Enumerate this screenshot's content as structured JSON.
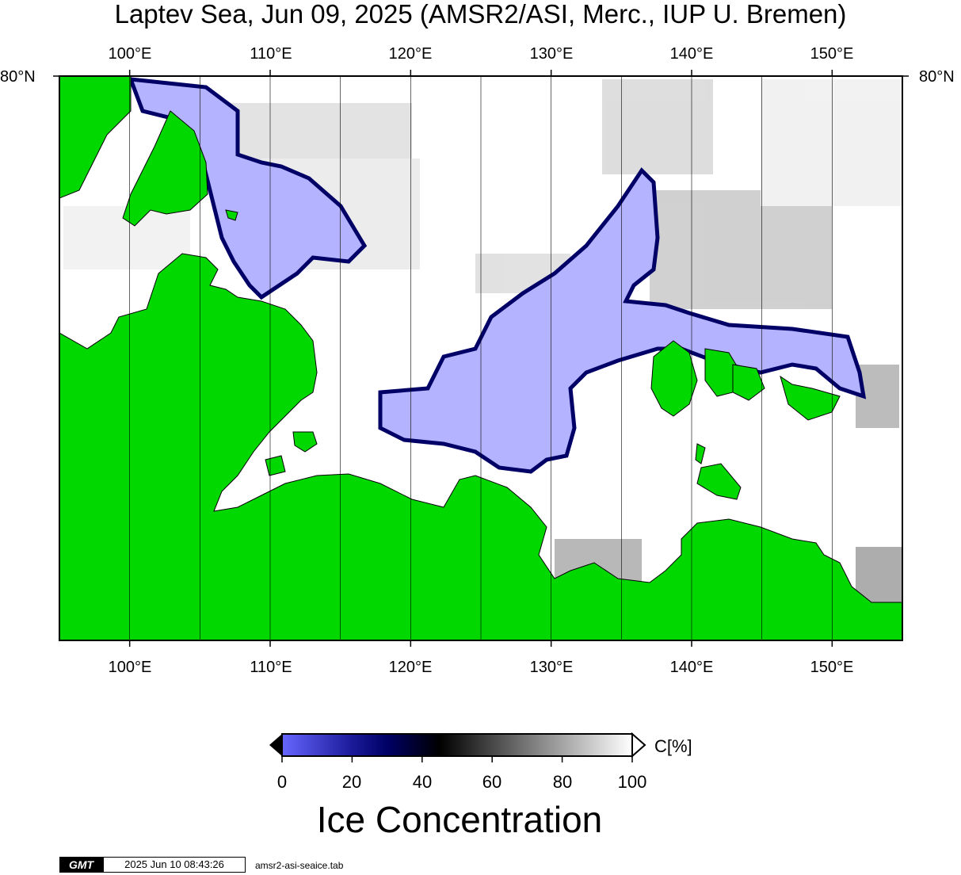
{
  "title": "Laptev Sea, Jun 09, 2025 (AMSR2/ASI, Merc., IUP U. Bremen)",
  "map": {
    "lon_min": 95,
    "lon_max": 155,
    "lon_labels": [
      "100°E",
      "110°E",
      "120°E",
      "130°E",
      "140°E",
      "150°E"
    ],
    "lon_label_values": [
      100,
      110,
      120,
      130,
      140,
      150
    ],
    "lat_label_left": "80°N",
    "lat_label_right": "80°N",
    "colors": {
      "land": "#00d800",
      "open_water": "#ffffff",
      "low_ice": "#b3b3ff",
      "frame": "#000000",
      "grid": "#000000"
    }
  },
  "colorbar": {
    "unit": "C[%]",
    "ticks": [
      "0",
      "20",
      "40",
      "60",
      "80",
      "100"
    ],
    "tick_values": [
      0,
      20,
      40,
      60,
      80,
      100
    ],
    "title": "Ice Concentration",
    "stops": [
      {
        "value": 0,
        "color": "#6666ff"
      },
      {
        "value": 20,
        "color": "#1a1a99"
      },
      {
        "value": 30,
        "color": "#000066"
      },
      {
        "value": 45,
        "color": "#000000"
      },
      {
        "value": 70,
        "color": "#777777"
      },
      {
        "value": 100,
        "color": "#ffffff"
      }
    ]
  },
  "footer": {
    "logo": "GMT",
    "timestamp": "2025 Jun 10 08:43:26",
    "filename": "amsr2-asi-seaice.tab"
  }
}
